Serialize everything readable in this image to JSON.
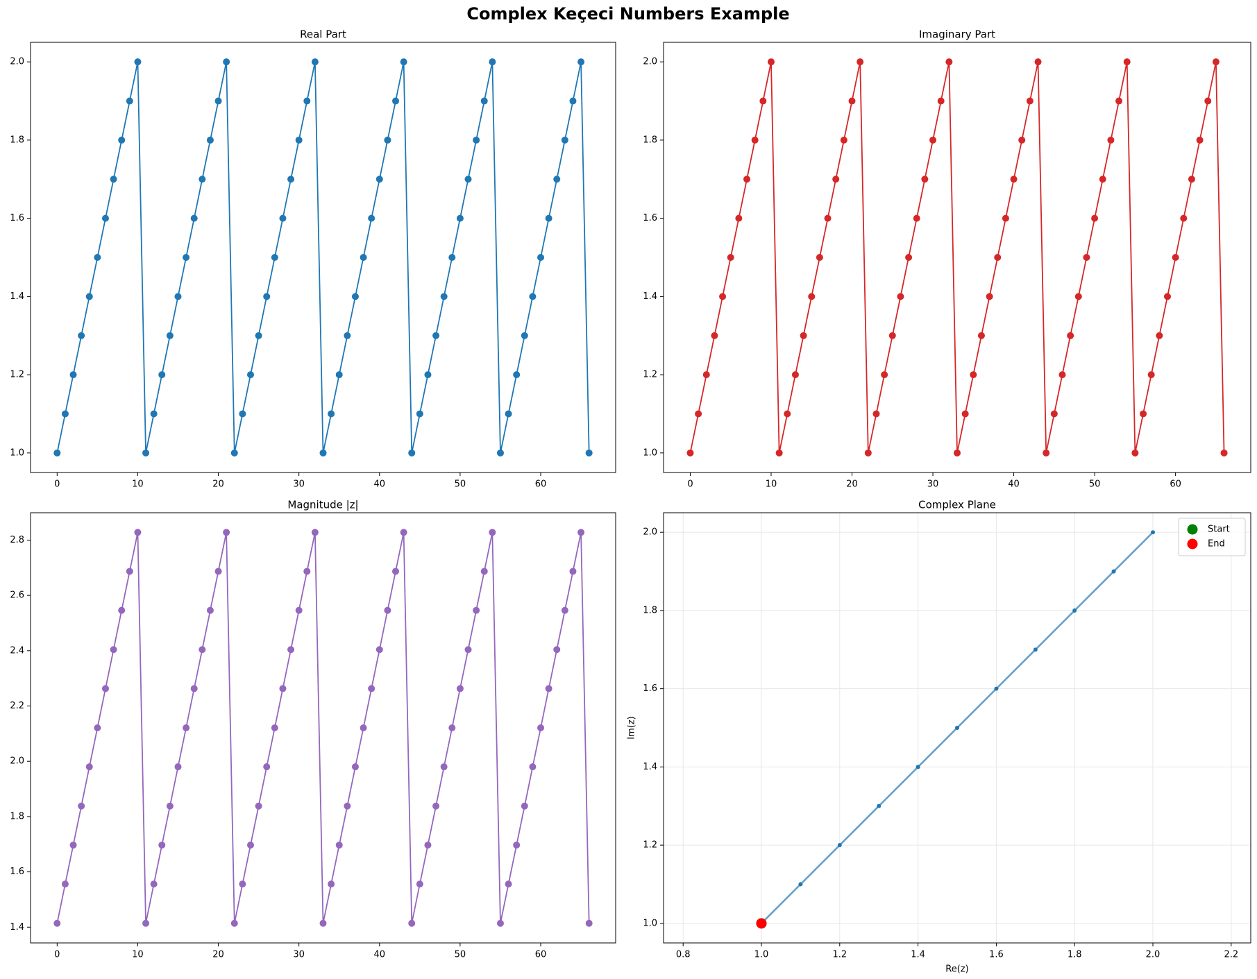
{
  "title": "Complex Keçeci Numbers Example",
  "chart_data": [
    {
      "type": "line",
      "title": "Real Part",
      "color": "#1f77b4",
      "x": [
        0,
        1,
        2,
        3,
        4,
        5,
        6,
        7,
        8,
        9,
        10,
        11,
        12,
        13,
        14,
        15,
        16,
        17,
        18,
        19,
        20,
        21,
        22,
        23,
        24,
        25,
        26,
        27,
        28,
        29,
        30,
        31,
        32,
        33,
        34,
        35,
        36,
        37,
        38,
        39,
        40,
        41,
        42,
        43,
        44,
        45,
        46,
        47,
        48,
        49,
        50,
        51,
        52,
        53,
        54,
        55,
        56,
        57,
        58,
        59,
        60,
        61,
        62,
        63,
        64,
        65,
        66
      ],
      "values": [
        1.0,
        1.1,
        1.2,
        1.3,
        1.4,
        1.5,
        1.6,
        1.7,
        1.8,
        1.9,
        2.0,
        1.0,
        1.1,
        1.2,
        1.3,
        1.4,
        1.5,
        1.6,
        1.7,
        1.8,
        1.9,
        2.0,
        1.0,
        1.1,
        1.2,
        1.3,
        1.4,
        1.5,
        1.6,
        1.7,
        1.8,
        1.9,
        2.0,
        1.0,
        1.1,
        1.2,
        1.3,
        1.4,
        1.5,
        1.6,
        1.7,
        1.8,
        1.9,
        2.0,
        1.0,
        1.1,
        1.2,
        1.3,
        1.4,
        1.5,
        1.6,
        1.7,
        1.8,
        1.9,
        2.0,
        1.0,
        1.1,
        1.2,
        1.3,
        1.4,
        1.5,
        1.6,
        1.7,
        1.8,
        1.9,
        2.0,
        1.0
      ],
      "xlim": [
        -3.3,
        69.3
      ],
      "ylim": [
        0.95,
        2.05
      ],
      "xticks": [
        0,
        10,
        20,
        30,
        40,
        50,
        60
      ],
      "yticks": [
        {
          "value": 1.0,
          "label": "1.0"
        },
        {
          "value": 1.2,
          "label": "1.2"
        },
        {
          "value": 1.4,
          "label": "1.4"
        },
        {
          "value": 1.6,
          "label": "1.6"
        },
        {
          "value": 1.8,
          "label": "1.8"
        },
        {
          "value": 2.0,
          "label": "2.0"
        }
      ]
    },
    {
      "type": "line",
      "title": "Imaginary Part",
      "color": "#d62728",
      "x": [
        0,
        1,
        2,
        3,
        4,
        5,
        6,
        7,
        8,
        9,
        10,
        11,
        12,
        13,
        14,
        15,
        16,
        17,
        18,
        19,
        20,
        21,
        22,
        23,
        24,
        25,
        26,
        27,
        28,
        29,
        30,
        31,
        32,
        33,
        34,
        35,
        36,
        37,
        38,
        39,
        40,
        41,
        42,
        43,
        44,
        45,
        46,
        47,
        48,
        49,
        50,
        51,
        52,
        53,
        54,
        55,
        56,
        57,
        58,
        59,
        60,
        61,
        62,
        63,
        64,
        65,
        66
      ],
      "values": [
        1.0,
        1.1,
        1.2,
        1.3,
        1.4,
        1.5,
        1.6,
        1.7,
        1.8,
        1.9,
        2.0,
        1.0,
        1.1,
        1.2,
        1.3,
        1.4,
        1.5,
        1.6,
        1.7,
        1.8,
        1.9,
        2.0,
        1.0,
        1.1,
        1.2,
        1.3,
        1.4,
        1.5,
        1.6,
        1.7,
        1.8,
        1.9,
        2.0,
        1.0,
        1.1,
        1.2,
        1.3,
        1.4,
        1.5,
        1.6,
        1.7,
        1.8,
        1.9,
        2.0,
        1.0,
        1.1,
        1.2,
        1.3,
        1.4,
        1.5,
        1.6,
        1.7,
        1.8,
        1.9,
        2.0,
        1.0,
        1.1,
        1.2,
        1.3,
        1.4,
        1.5,
        1.6,
        1.7,
        1.8,
        1.9,
        2.0,
        1.0
      ],
      "xlim": [
        -3.3,
        69.3
      ],
      "ylim": [
        0.95,
        2.05
      ],
      "xticks": [
        0,
        10,
        20,
        30,
        40,
        50,
        60
      ],
      "yticks": [
        {
          "value": 1.0,
          "label": "1.0"
        },
        {
          "value": 1.2,
          "label": "1.2"
        },
        {
          "value": 1.4,
          "label": "1.4"
        },
        {
          "value": 1.6,
          "label": "1.6"
        },
        {
          "value": 1.8,
          "label": "1.8"
        },
        {
          "value": 2.0,
          "label": "2.0"
        }
      ]
    },
    {
      "type": "line",
      "title": "Magnitude |z|",
      "color": "#9467bd",
      "x": [
        0,
        1,
        2,
        3,
        4,
        5,
        6,
        7,
        8,
        9,
        10,
        11,
        12,
        13,
        14,
        15,
        16,
        17,
        18,
        19,
        20,
        21,
        22,
        23,
        24,
        25,
        26,
        27,
        28,
        29,
        30,
        31,
        32,
        33,
        34,
        35,
        36,
        37,
        38,
        39,
        40,
        41,
        42,
        43,
        44,
        45,
        46,
        47,
        48,
        49,
        50,
        51,
        52,
        53,
        54,
        55,
        56,
        57,
        58,
        59,
        60,
        61,
        62,
        63,
        64,
        65,
        66
      ],
      "values": [
        1.414,
        1.556,
        1.697,
        1.838,
        1.98,
        2.121,
        2.263,
        2.404,
        2.546,
        2.687,
        2.828,
        1.414,
        1.556,
        1.697,
        1.838,
        1.98,
        2.121,
        2.263,
        2.404,
        2.546,
        2.687,
        2.828,
        1.414,
        1.556,
        1.697,
        1.838,
        1.98,
        2.121,
        2.263,
        2.404,
        2.546,
        2.687,
        2.828,
        1.414,
        1.556,
        1.697,
        1.838,
        1.98,
        2.121,
        2.263,
        2.404,
        2.546,
        2.687,
        2.828,
        1.414,
        1.556,
        1.697,
        1.838,
        1.98,
        2.121,
        2.263,
        2.404,
        2.546,
        2.687,
        2.828,
        1.414,
        1.556,
        1.697,
        1.838,
        1.98,
        2.121,
        2.263,
        2.404,
        2.546,
        2.687,
        2.828,
        1.414
      ],
      "xlim": [
        -3.3,
        69.3
      ],
      "ylim": [
        1.343,
        2.899
      ],
      "xticks": [
        0,
        10,
        20,
        30,
        40,
        50,
        60
      ],
      "yticks": [
        {
          "value": 1.4,
          "label": "1.4"
        },
        {
          "value": 1.6,
          "label": "1.6"
        },
        {
          "value": 1.8,
          "label": "1.8"
        },
        {
          "value": 2.0,
          "label": "2.0"
        },
        {
          "value": 2.2,
          "label": "2.2"
        },
        {
          "value": 2.4,
          "label": "2.4"
        },
        {
          "value": 2.6,
          "label": "2.6"
        },
        {
          "value": 2.8,
          "label": "2.8"
        }
      ]
    },
    {
      "type": "scatter",
      "title": "Complex Plane",
      "xlabel": "Re(z)",
      "ylabel": "Im(z)",
      "color": "#1f77b4",
      "grid": true,
      "legend": "upper right",
      "x": [
        1.0,
        1.1,
        1.2,
        1.3,
        1.4,
        1.5,
        1.6,
        1.7,
        1.8,
        1.9,
        2.0,
        1.0,
        1.1,
        1.2,
        1.3,
        1.4,
        1.5,
        1.6,
        1.7,
        1.8,
        1.9,
        2.0,
        1.0,
        1.1,
        1.2,
        1.3,
        1.4,
        1.5,
        1.6,
        1.7,
        1.8,
        1.9,
        2.0,
        1.0,
        1.1,
        1.2,
        1.3,
        1.4,
        1.5,
        1.6,
        1.7,
        1.8,
        1.9,
        2.0,
        1.0,
        1.1,
        1.2,
        1.3,
        1.4,
        1.5,
        1.6,
        1.7,
        1.8,
        1.9,
        2.0,
        1.0,
        1.1,
        1.2,
        1.3,
        1.4,
        1.5,
        1.6,
        1.7,
        1.8,
        1.9,
        2.0,
        1.0
      ],
      "y": [
        1.0,
        1.1,
        1.2,
        1.3,
        1.4,
        1.5,
        1.6,
        1.7,
        1.8,
        1.9,
        2.0,
        1.0,
        1.1,
        1.2,
        1.3,
        1.4,
        1.5,
        1.6,
        1.7,
        1.8,
        1.9,
        2.0,
        1.0,
        1.1,
        1.2,
        1.3,
        1.4,
        1.5,
        1.6,
        1.7,
        1.8,
        1.9,
        2.0,
        1.0,
        1.1,
        1.2,
        1.3,
        1.4,
        1.5,
        1.6,
        1.7,
        1.8,
        1.9,
        2.0,
        1.0,
        1.1,
        1.2,
        1.3,
        1.4,
        1.5,
        1.6,
        1.7,
        1.8,
        1.9,
        2.0,
        1.0,
        1.1,
        1.2,
        1.3,
        1.4,
        1.5,
        1.6,
        1.7,
        1.8,
        1.9,
        2.0,
        1.0
      ],
      "markers": [
        {
          "name": "Start",
          "x": 1.0,
          "y": 1.0,
          "color": "#008000"
        },
        {
          "name": "End",
          "x": 1.0,
          "y": 1.0,
          "color": "#ff0000"
        }
      ],
      "xlim": [
        0.75,
        2.25
      ],
      "ylim": [
        0.95,
        2.05
      ],
      "xticks": [
        {
          "value": 0.8,
          "label": "0.8"
        },
        {
          "value": 1.0,
          "label": "1.0"
        },
        {
          "value": 1.2,
          "label": "1.2"
        },
        {
          "value": 1.4,
          "label": "1.4"
        },
        {
          "value": 1.6,
          "label": "1.6"
        },
        {
          "value": 1.8,
          "label": "1.8"
        },
        {
          "value": 2.0,
          "label": "2.0"
        },
        {
          "value": 2.2,
          "label": "2.2"
        }
      ],
      "yticks": [
        {
          "value": 1.0,
          "label": "1.0"
        },
        {
          "value": 1.2,
          "label": "1.2"
        },
        {
          "value": 1.4,
          "label": "1.4"
        },
        {
          "value": 1.6,
          "label": "1.6"
        },
        {
          "value": 1.8,
          "label": "1.8"
        },
        {
          "value": 2.0,
          "label": "2.0"
        }
      ]
    }
  ]
}
